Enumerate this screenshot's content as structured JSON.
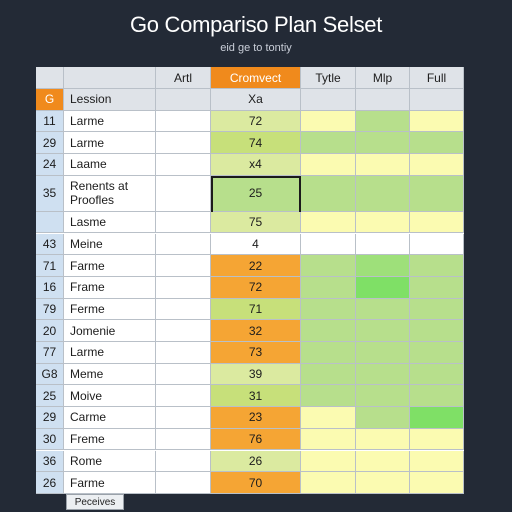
{
  "title": "Go Compariso Plan Selset",
  "subtitle": "eid ge to tontiy",
  "footer_tab": "Peceives",
  "colors": {
    "accent": "#f08a1c",
    "header": "#dfe3e8",
    "row_header": "#cfe0f1",
    "light_green": "#dbeaa0",
    "green": "#b7df8c",
    "bright_green": "#7fe066",
    "pale_yellow": "#fbfbb1",
    "orange": "#f5a534",
    "white": "#ffffff"
  },
  "columns": [
    {
      "label": "",
      "style": "hdr"
    },
    {
      "label": "",
      "style": "hdr"
    },
    {
      "label": "Artl",
      "style": "hdr"
    },
    {
      "label": "Cromvect",
      "style": "hdr-accent"
    },
    {
      "label": "Tytle",
      "style": "hdr"
    },
    {
      "label": "Mlp",
      "style": "hdr"
    },
    {
      "label": "Full",
      "style": "hdr"
    }
  ],
  "rows": [
    {
      "num": "G",
      "name": "Lession",
      "artl": "",
      "value": "Xa",
      "cells": [
        "#ffffff",
        "#ffffff",
        "#ffffff",
        "#ffffff",
        "#ffffff"
      ],
      "accent": true
    },
    {
      "num": "11",
      "name": "Larme",
      "artl": "",
      "value": "72",
      "cells": [
        "#ffffff",
        "#dbeaa0",
        "#fbfbb1",
        "#b7df8c",
        "#fbfbb1"
      ]
    },
    {
      "num": "29",
      "name": "Larme",
      "artl": "",
      "value": "74",
      "cells": [
        "#ffffff",
        "#c7e07a",
        "#b7df8c",
        "#b7df8c",
        "#b7df8c"
      ]
    },
    {
      "num": "24",
      "name": "Laame",
      "artl": "",
      "value": "x4",
      "cells": [
        "#ffffff",
        "#dbeaa0",
        "#fbfbb1",
        "#fbfbb1",
        "#fbfbb1"
      ]
    },
    {
      "num": "35",
      "name": "Renents at Proofles",
      "artl": "",
      "value": "25",
      "cells": [
        "#ffffff",
        "#b7df8c",
        "#b7df8c",
        "#b7df8c",
        "#b7df8c"
      ],
      "tall": true
    },
    {
      "num": "",
      "name": "Lasme",
      "artl": "",
      "value": "75",
      "cells": [
        "#ffffff",
        "#dbeaa0",
        "#fbfbb1",
        "#fbfbb1",
        "#fbfbb1"
      ]
    },
    {
      "num": "43",
      "name": "Meine",
      "artl": "",
      "value": "4",
      "cells": [
        "#ffffff",
        "#ffffff",
        "#ffffff",
        "#ffffff",
        "#ffffff"
      ]
    },
    {
      "num": "71",
      "name": "Farme",
      "artl": "",
      "value": "22",
      "cells": [
        "#ffffff",
        "#f5a534",
        "#b7df8c",
        "#9ee07a",
        "#b7df8c"
      ]
    },
    {
      "num": "16",
      "name": "Frame",
      "artl": "",
      "value": "72",
      "cells": [
        "#ffffff",
        "#f5a534",
        "#b7df8c",
        "#7fe066",
        "#b7df8c"
      ]
    },
    {
      "num": "79",
      "name": "Ferme",
      "artl": "",
      "value": "71",
      "cells": [
        "#ffffff",
        "#c7e07a",
        "#b7df8c",
        "#b7df8c",
        "#b7df8c"
      ]
    },
    {
      "num": "20",
      "name": "Jomenie",
      "artl": "",
      "value": "32",
      "cells": [
        "#ffffff",
        "#f5a534",
        "#b7df8c",
        "#b7df8c",
        "#b7df8c"
      ]
    },
    {
      "num": "77",
      "name": "Larme",
      "artl": "",
      "value": "73",
      "cells": [
        "#ffffff",
        "#f5a534",
        "#b7df8c",
        "#b7df8c",
        "#b7df8c"
      ]
    },
    {
      "num": "G8",
      "name": "Meme",
      "artl": "",
      "value": "39",
      "cells": [
        "#ffffff",
        "#dbeaa0",
        "#b7df8c",
        "#b7df8c",
        "#b7df8c"
      ]
    },
    {
      "num": "25",
      "name": "Moive",
      "artl": "",
      "value": "31",
      "cells": [
        "#ffffff",
        "#c7e07a",
        "#b7df8c",
        "#b7df8c",
        "#b7df8c"
      ]
    },
    {
      "num": "29",
      "name": "Carme",
      "artl": "",
      "value": "23",
      "cells": [
        "#ffffff",
        "#f5a534",
        "#fbfbb1",
        "#b7df8c",
        "#7fe066"
      ]
    },
    {
      "num": "30",
      "name": "Freme",
      "artl": "",
      "value": "76",
      "cells": [
        "#ffffff",
        "#f5a534",
        "#fbfbb1",
        "#fbfbb1",
        "#fbfbb1"
      ]
    },
    {
      "num": "36",
      "name": "Rome",
      "artl": "",
      "value": "26",
      "cells": [
        "#ffffff",
        "#dbeaa0",
        "#fbfbb1",
        "#fbfbb1",
        "#fbfbb1"
      ]
    },
    {
      "num": "26",
      "name": "Farme",
      "artl": "",
      "value": "70",
      "cells": [
        "#ffffff",
        "#f5a534",
        "#fbfbb1",
        "#fbfbb1",
        "#fbfbb1"
      ]
    }
  ]
}
